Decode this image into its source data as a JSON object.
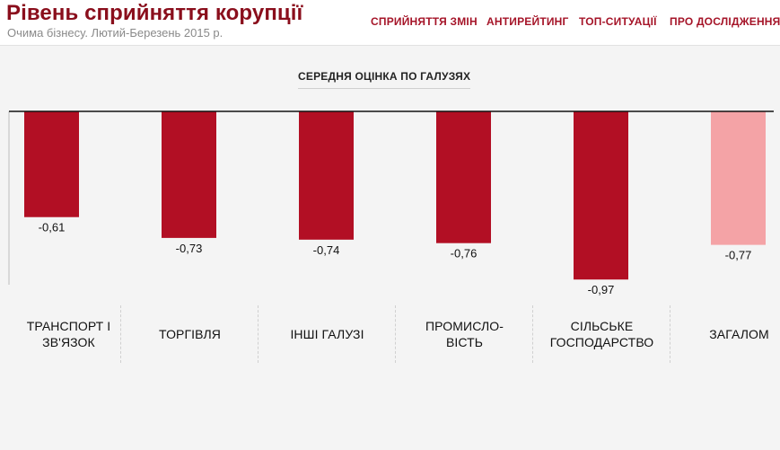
{
  "header": {
    "title": "Рівень сприйняття корупції",
    "subtitle": "Очима бізнесу. Лютий-Березень 2015 р.",
    "nav": [
      {
        "label": "СПРИЙНЯТТЯ ЗМІН"
      },
      {
        "label": "АНТИРЕЙТИНГ"
      },
      {
        "label": "ТОП-СИТУАЦІЇ"
      },
      {
        "label": "ПРО ДОСЛІДЖЕННЯ"
      }
    ]
  },
  "chart_data": {
    "type": "bar",
    "title": "СЕРЕДНЯ ОЦІНКА ПО ГАЛУЗЯХ",
    "categories": [
      "ТРАНСПОРТ І\nЗВ'ЯЗОК",
      "ТОРГІВЛЯ",
      "ІНШІ ГАЛУЗІ",
      "ПРОМИСЛО-\nВІСТЬ",
      "СІЛЬСЬКЕ\nГОСПОДАРСТВО",
      "ЗАГАЛОМ"
    ],
    "values": [
      -0.61,
      -0.73,
      -0.74,
      -0.76,
      -0.97,
      -0.77
    ],
    "value_labels": [
      "-0,61",
      "-0,73",
      "-0,74",
      "-0,76",
      "-0,97",
      "-0,77"
    ],
    "ylim": [
      -1,
      0
    ],
    "grid": false,
    "colors": {
      "bar": "#b20f24",
      "total_bar": "#f4a3a6",
      "baseline": "#111111",
      "axis": "#bbbbbb"
    },
    "highlight_index": 5
  }
}
